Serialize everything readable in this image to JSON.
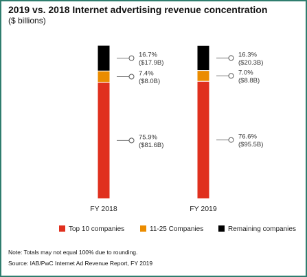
{
  "title": "2019 vs. 2018 Internet advertising revenue concentration",
  "subtitle": "($ billions)",
  "note": "Note: Totals may not equal 100% due to rounding.",
  "source": "Source: IAB/PwC Internet Ad Revenue Report, FY 2019",
  "colors": {
    "top10": "#e0301e",
    "mid": "#eb8c00",
    "remaining": "#000000",
    "border": "#2f7d6e"
  },
  "chart_data": {
    "type": "bar",
    "stacked": true,
    "categories": [
      "FY 2018",
      "FY 2019"
    ],
    "series": [
      {
        "name": "Top 10 companies",
        "color": "#e0301e",
        "values": [
          75.9,
          76.6
        ],
        "labels": [
          "75.9%",
          "76.6%"
        ],
        "sublabels": [
          "($81.6B)",
          "($95.5B)"
        ]
      },
      {
        "name": "11-25 Companies",
        "color": "#eb8c00",
        "values": [
          7.4,
          7.0
        ],
        "labels": [
          "7.4%",
          "7.0%"
        ],
        "sublabels": [
          "($8.0B)",
          "($8.8B)"
        ]
      },
      {
        "name": "Remaining companies",
        "color": "#000000",
        "values": [
          16.7,
          16.3
        ],
        "labels": [
          "16.7%",
          "16.3%"
        ],
        "sublabels": [
          "($17.9B)",
          "($20.3B)"
        ]
      }
    ],
    "ylim": [
      0,
      100
    ],
    "legend_position": "bottom",
    "grid": false
  }
}
